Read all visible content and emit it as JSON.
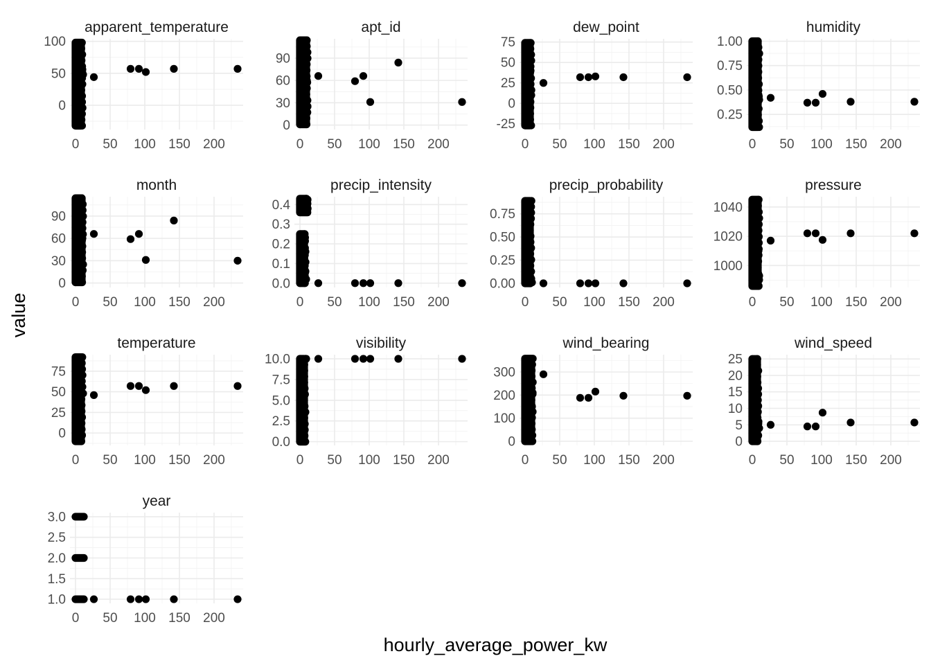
{
  "chart_data": {
    "type": "scatter",
    "facet_layout": "wrap",
    "ncol": 4,
    "xlabel": "hourly_average_power_kw",
    "ylabel": "value",
    "x_ticks": [
      0,
      50,
      100,
      150,
      200
    ],
    "xlim": [
      -8,
      242
    ],
    "point_color": "#000000",
    "grid": true,
    "legend": "none",
    "x_outliers": [
      26.5,
      79.5,
      91.5,
      101.5,
      142,
      234
    ],
    "panels": [
      {
        "name": "apparent_temperature",
        "ylim": [
          -38,
          104
        ],
        "y_ticks": [
          0,
          50,
          100
        ],
        "y_tick_labels": [
          "0",
          "50",
          "100"
        ],
        "dense_band": {
          "x_min": 0,
          "x_max": 8,
          "y_min": -32,
          "y_max": 98
        },
        "side_points": [
          {
            "x": 10,
            "y": 56
          },
          {
            "x": 11,
            "y": 48
          }
        ],
        "outliers": [
          {
            "x": 26.5,
            "y": 44
          },
          {
            "x": 79.5,
            "y": 57
          },
          {
            "x": 91.5,
            "y": 57
          },
          {
            "x": 101.5,
            "y": 52
          },
          {
            "x": 142,
            "y": 57
          },
          {
            "x": 234,
            "y": 57
          }
        ]
      },
      {
        "name": "apt_id",
        "ylim": [
          -6,
          116
        ],
        "y_ticks": [
          0,
          30,
          60,
          90
        ],
        "y_tick_labels": [
          "0",
          "30",
          "60",
          "90"
        ],
        "dense_band": {
          "x_min": 0,
          "x_max": 9,
          "y_min": 1,
          "y_max": 114
        },
        "side_points": [
          {
            "x": 10,
            "y": 60
          },
          {
            "x": 11,
            "y": 25
          }
        ],
        "outliers": [
          {
            "x": 26.5,
            "y": 66
          },
          {
            "x": 79.5,
            "y": 59
          },
          {
            "x": 91.5,
            "y": 66
          },
          {
            "x": 101.5,
            "y": 31
          },
          {
            "x": 142,
            "y": 84
          },
          {
            "x": 234,
            "y": 31
          }
        ]
      },
      {
        "name": "dew_point",
        "ylim": [
          -32,
          79
        ],
        "y_ticks": [
          -25,
          0,
          25,
          50,
          75
        ],
        "y_tick_labels": [
          "-25",
          "0",
          "25",
          "50",
          "75"
        ],
        "dense_band": {
          "x_min": 0,
          "x_max": 7,
          "y_min": -27,
          "y_max": 74
        },
        "side_points": [
          {
            "x": 8,
            "y": 40
          },
          {
            "x": 9,
            "y": 10
          }
        ],
        "outliers": [
          {
            "x": 26.5,
            "y": 25
          },
          {
            "x": 79.5,
            "y": 32
          },
          {
            "x": 91.5,
            "y": 32
          },
          {
            "x": 101.5,
            "y": 33
          },
          {
            "x": 142,
            "y": 32
          },
          {
            "x": 234,
            "y": 32
          }
        ]
      },
      {
        "name": "humidity",
        "ylim": [
          0.095,
          1.025
        ],
        "y_ticks": [
          0.25,
          0.5,
          0.75,
          1.0
        ],
        "y_tick_labels": [
          "0.25",
          "0.50",
          "0.75",
          "1.00"
        ],
        "dense_band": {
          "x_min": 0,
          "x_max": 8,
          "y_min": 0.12,
          "y_max": 1.0
        },
        "side_points": [
          {
            "x": 9,
            "y": 0.45
          },
          {
            "x": 10,
            "y": 0.4
          }
        ],
        "outliers": [
          {
            "x": 26.5,
            "y": 0.42
          },
          {
            "x": 79.5,
            "y": 0.37
          },
          {
            "x": 91.5,
            "y": 0.37
          },
          {
            "x": 101.5,
            "y": 0.46
          },
          {
            "x": 142,
            "y": 0.38
          },
          {
            "x": 234,
            "y": 0.38
          }
        ]
      },
      {
        "name": "month",
        "ylim": [
          -6,
          116
        ],
        "y_ticks": [
          0,
          30,
          60,
          90
        ],
        "y_tick_labels": [
          "0",
          "30",
          "60",
          "90"
        ],
        "dense_band": {
          "x_min": 0,
          "x_max": 9,
          "y_min": 1,
          "y_max": 114
        },
        "side_points": [
          {
            "x": 10,
            "y": 60
          },
          {
            "x": 11,
            "y": 25
          }
        ],
        "outliers": [
          {
            "x": 26.5,
            "y": 66
          },
          {
            "x": 79.5,
            "y": 59
          },
          {
            "x": 91.5,
            "y": 66
          },
          {
            "x": 101.5,
            "y": 31
          },
          {
            "x": 142,
            "y": 84
          },
          {
            "x": 234,
            "y": 30
          }
        ]
      },
      {
        "name": "precip_intensity",
        "ylim": [
          -0.022,
          0.44
        ],
        "y_ticks": [
          0.0,
          0.1,
          0.2,
          0.3,
          0.4
        ],
        "y_tick_labels": [
          "0.0",
          "0.1",
          "0.2",
          "0.3",
          "0.4"
        ],
        "dense_bands": [
          {
            "x_min": 0,
            "x_max": 6,
            "y_min": 0.0,
            "y_max": 0.25
          },
          {
            "x_min": 0,
            "x_max": 9,
            "y_min": 0.36,
            "y_max": 0.43
          }
        ],
        "side_points": [
          {
            "x": 8,
            "y": 0.06
          },
          {
            "x": 9,
            "y": 0.02
          }
        ],
        "outliers": [
          {
            "x": 26.5,
            "y": 0.0
          },
          {
            "x": 79.5,
            "y": 0.0
          },
          {
            "x": 91.5,
            "y": 0.0
          },
          {
            "x": 101.5,
            "y": 0.0
          },
          {
            "x": 142,
            "y": 0.0
          },
          {
            "x": 234,
            "y": 0.0
          }
        ]
      },
      {
        "name": "precip_probability",
        "ylim": [
          -0.045,
          0.935
        ],
        "y_ticks": [
          0.0,
          0.25,
          0.5,
          0.75
        ],
        "y_tick_labels": [
          "0.00",
          "0.25",
          "0.50",
          "0.75"
        ],
        "dense_band": {
          "x_min": 0,
          "x_max": 7,
          "y_min": 0.0,
          "y_max": 0.89
        },
        "side_points": [
          {
            "x": 9,
            "y": 0.05
          },
          {
            "x": 10,
            "y": 0.01
          }
        ],
        "outliers": [
          {
            "x": 26.5,
            "y": 0.0
          },
          {
            "x": 79.5,
            "y": 0.0
          },
          {
            "x": 91.5,
            "y": 0.0
          },
          {
            "x": 101.5,
            "y": 0.0
          },
          {
            "x": 142,
            "y": 0.0
          },
          {
            "x": 234,
            "y": 0.0
          }
        ]
      },
      {
        "name": "pressure",
        "ylim": [
          985,
          1047
        ],
        "y_ticks": [
          1000,
          1020,
          1040
        ],
        "y_tick_labels": [
          "1000",
          "1020",
          "1040"
        ],
        "dense_band": {
          "x_min": 0,
          "x_max": 8,
          "y_min": 986,
          "y_max": 1045
        },
        "side_points": [
          {
            "x": 9,
            "y": 1010
          },
          {
            "x": 10,
            "y": 993
          }
        ],
        "outliers": [
          {
            "x": 26.5,
            "y": 1017
          },
          {
            "x": 79.5,
            "y": 1022
          },
          {
            "x": 91.5,
            "y": 1022
          },
          {
            "x": 101.5,
            "y": 1017.5
          },
          {
            "x": 142,
            "y": 1022
          },
          {
            "x": 234,
            "y": 1022
          }
        ]
      },
      {
        "name": "temperature",
        "ylim": [
          -15,
          95
        ],
        "y_ticks": [
          0,
          25,
          50,
          75
        ],
        "y_tick_labels": [
          "0",
          "25",
          "50",
          "75"
        ],
        "dense_band": {
          "x_min": 0,
          "x_max": 8,
          "y_min": -10,
          "y_max": 92
        },
        "side_points": [
          {
            "x": 10,
            "y": 56
          },
          {
            "x": 11,
            "y": 48
          }
        ],
        "outliers": [
          {
            "x": 26.5,
            "y": 46
          },
          {
            "x": 79.5,
            "y": 57
          },
          {
            "x": 91.5,
            "y": 57
          },
          {
            "x": 101.5,
            "y": 52
          },
          {
            "x": 142,
            "y": 57
          },
          {
            "x": 234,
            "y": 57
          }
        ]
      },
      {
        "name": "visibility",
        "ylim": [
          -0.45,
          10.5
        ],
        "y_ticks": [
          0.0,
          2.5,
          5.0,
          7.5,
          10.0
        ],
        "y_tick_labels": [
          "0.0",
          "2.5",
          "5.0",
          "7.5",
          "10.0"
        ],
        "dense_band": {
          "x_min": 0,
          "x_max": 6,
          "y_min": 0.0,
          "y_max": 10.0
        },
        "side_points": [
          {
            "x": 8,
            "y": 10.0
          },
          {
            "x": 9,
            "y": 10.0
          }
        ],
        "outliers": [
          {
            "x": 26.5,
            "y": 10.0
          },
          {
            "x": 79.5,
            "y": 10.0
          },
          {
            "x": 91.5,
            "y": 10.0
          },
          {
            "x": 101.5,
            "y": 10.0
          },
          {
            "x": 142,
            "y": 10.0
          },
          {
            "x": 234,
            "y": 10.0
          }
        ]
      },
      {
        "name": "wind_bearing",
        "ylim": [
          -18,
          375
        ],
        "y_ticks": [
          0,
          100,
          200,
          300
        ],
        "y_tick_labels": [
          "0",
          "100",
          "200",
          "300"
        ],
        "dense_band": {
          "x_min": 0,
          "x_max": 9,
          "y_min": 0,
          "y_max": 358
        },
        "side_points": [
          {
            "x": 10,
            "y": 150
          },
          {
            "x": 11,
            "y": 210
          }
        ],
        "outliers": [
          {
            "x": 26.5,
            "y": 290
          },
          {
            "x": 79.5,
            "y": 188
          },
          {
            "x": 91.5,
            "y": 188
          },
          {
            "x": 101.5,
            "y": 215
          },
          {
            "x": 142,
            "y": 197
          },
          {
            "x": 234,
            "y": 197
          }
        ]
      },
      {
        "name": "wind_speed",
        "ylim": [
          -1.25,
          26.3
        ],
        "y_ticks": [
          0,
          5,
          10,
          15,
          20,
          25
        ],
        "y_tick_labels": [
          "0",
          "5",
          "10",
          "15",
          "20",
          "25"
        ],
        "dense_band": {
          "x_min": 0,
          "x_max": 7,
          "y_min": 0,
          "y_max": 25
        },
        "side_points": [
          {
            "x": 9,
            "y": 6
          },
          {
            "x": 10,
            "y": 4
          }
        ],
        "outliers": [
          {
            "x": 26.5,
            "y": 5.0
          },
          {
            "x": 79.5,
            "y": 4.5
          },
          {
            "x": 91.5,
            "y": 4.5
          },
          {
            "x": 101.5,
            "y": 8.7
          },
          {
            "x": 142,
            "y": 5.7
          },
          {
            "x": 234,
            "y": 5.7
          }
        ]
      },
      {
        "name": "year",
        "ylim": [
          0.9,
          3.1
        ],
        "y_ticks": [
          1.0,
          1.5,
          2.0,
          2.5,
          3.0
        ],
        "y_tick_labels": [
          "1.0",
          "1.5",
          "2.0",
          "2.5",
          "3.0"
        ],
        "clusters": [
          {
            "x_min": 0,
            "x_max": 12,
            "y": 1.0
          },
          {
            "x_min": 0,
            "x_max": 12,
            "y": 2.0
          },
          {
            "x_min": 0,
            "x_max": 12,
            "y": 3.0
          }
        ],
        "outliers": [
          {
            "x": 26.5,
            "y": 1.0
          },
          {
            "x": 79.5,
            "y": 1.0
          },
          {
            "x": 91.5,
            "y": 1.0
          },
          {
            "x": 101.5,
            "y": 1.0
          },
          {
            "x": 142,
            "y": 1.0
          },
          {
            "x": 234,
            "y": 1.0
          }
        ]
      }
    ]
  }
}
